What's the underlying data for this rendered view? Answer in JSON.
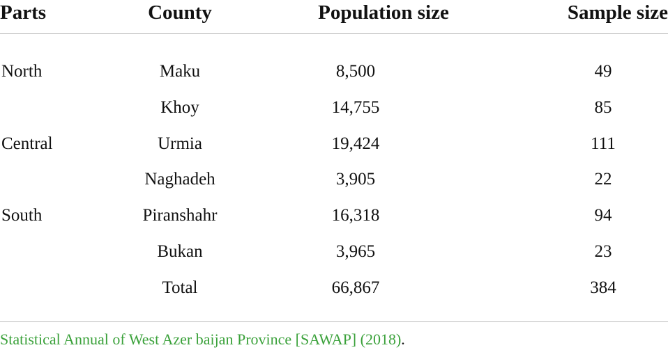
{
  "table": {
    "header": [
      "Parts",
      "County",
      "Population size",
      "Sample size"
    ],
    "rows": [
      {
        "part": "North",
        "county": "Maku",
        "population": "8,500",
        "sample": "49"
      },
      {
        "county": "Khoy",
        "population": "14,755",
        "sample": "85"
      },
      {
        "part": "Central",
        "county": "Urmia",
        "population": "19,424",
        "sample": "111"
      },
      {
        "county": "Naghadeh",
        "population": "3,905",
        "sample": "22"
      },
      {
        "part": "South",
        "county": "Piranshahr",
        "population": "16,318",
        "sample": "94"
      },
      {
        "county": "Bukan",
        "population": "3,965",
        "sample": "23"
      },
      {
        "county": "Total",
        "population": "66,867",
        "sample": "384"
      }
    ]
  },
  "note": {
    "source": "Statistical Annual of West Azer baijan Province [SAWAP] (2018)",
    "end": "."
  }
}
